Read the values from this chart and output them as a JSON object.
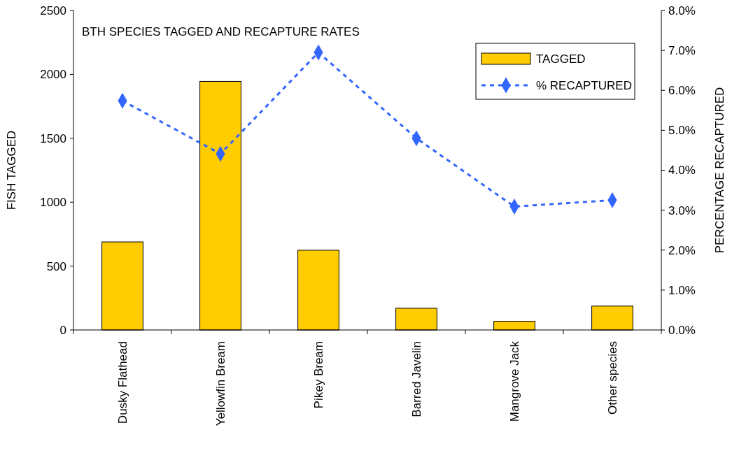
{
  "chart_data": {
    "type": "bar",
    "title": "BTH SPECIES TAGGED AND RECAPTURE RATES",
    "ylabel": "FISH TAGGED",
    "y2label": "PERCENTAGE RECAPTURED",
    "categories": [
      "Dusky Flathead",
      "Yellowfin Bream",
      "Pikey Bream",
      "Barred Javelin",
      "Mangrove Jack",
      "Other species"
    ],
    "series": [
      {
        "name": "TAGGED",
        "color": "#ffcc00",
        "values": [
          689,
          1945,
          624,
          170,
          68,
          187
        ]
      },
      {
        "name": "% RECAPTURED",
        "type": "line",
        "axis": "y2",
        "color": "#3366ff",
        "marker": "diamond",
        "line_style": "dashed",
        "values": [
          5.74,
          4.41,
          6.95,
          4.8,
          3.09,
          3.25
        ]
      }
    ],
    "ylim": [
      0,
      2500
    ],
    "yticks": [
      0,
      500,
      1000,
      1500,
      2000,
      2500
    ],
    "y2lim": [
      0,
      8
    ],
    "y2ticks": [
      {
        "value": 0,
        "label": "0.0%"
      },
      {
        "value": 1,
        "label": "1.0%"
      },
      {
        "value": 2,
        "label": "2.0%"
      },
      {
        "value": 3,
        "label": "3.0%"
      },
      {
        "value": 4,
        "label": "4.0%"
      },
      {
        "value": 5,
        "label": "5.0%"
      },
      {
        "value": 6,
        "label": "6.0%"
      },
      {
        "value": 7,
        "label": "7.0%"
      },
      {
        "value": 8,
        "label": "8.0%"
      }
    ],
    "legend": "top right",
    "grid": false
  }
}
